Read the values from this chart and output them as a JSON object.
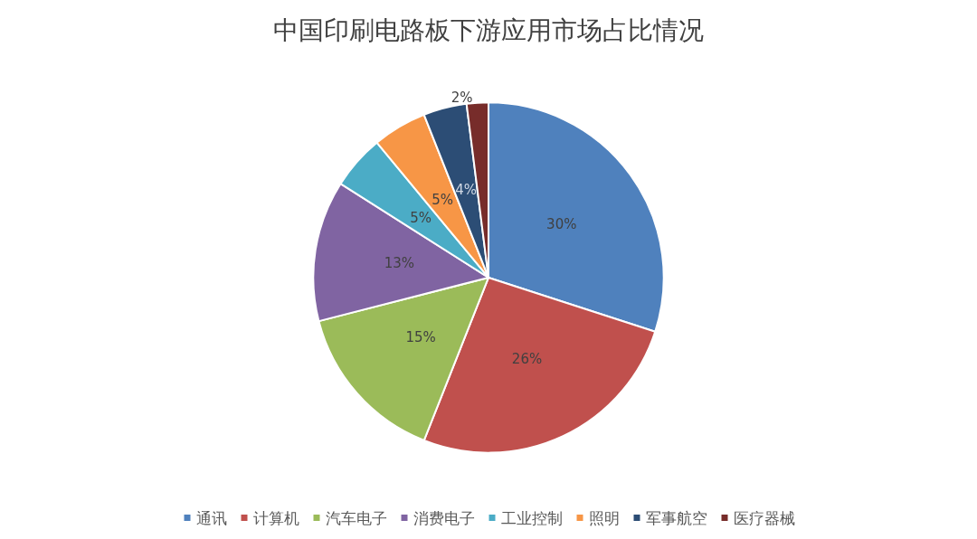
{
  "chart_data": {
    "type": "pie",
    "title": "中国印刷电路板下游应用市场占比情况",
    "categories": [
      "通讯",
      "计算机",
      "汽车电子",
      "消费电子",
      "工业控制",
      "照明",
      "军事航空",
      "医疗器械"
    ],
    "values": [
      30,
      26,
      15,
      13,
      5,
      5,
      4,
      2
    ],
    "colors": [
      "#4f81bd",
      "#c0504d",
      "#9bbb59",
      "#8064a2",
      "#4bacc6",
      "#f79646",
      "#2c4d75",
      "#772c2a"
    ],
    "value_labels": [
      "30%",
      "26%",
      "15%",
      "13%",
      "5%",
      "5%",
      "4%",
      "2%"
    ],
    "legend": "bottom"
  }
}
